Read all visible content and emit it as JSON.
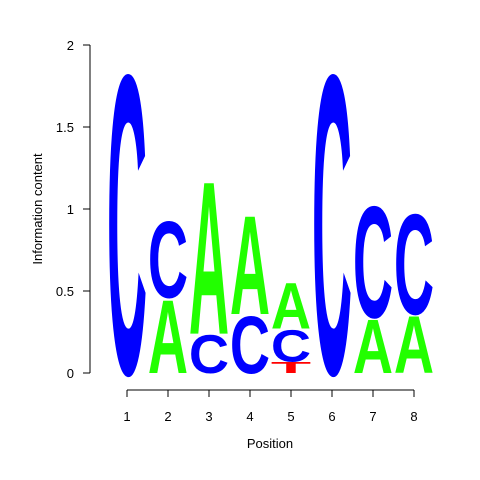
{
  "chart_data": {
    "type": "sequence-logo",
    "title": "",
    "xlabel": "Position",
    "ylabel": "Information content",
    "ylim": [
      0,
      2
    ],
    "y_ticks": [
      "0",
      "0.5",
      "1",
      "1.5",
      "2"
    ],
    "y_tick_values": [
      0,
      0.5,
      1,
      1.5,
      2
    ],
    "x_ticks": [
      "1",
      "2",
      "3",
      "4",
      "5",
      "6",
      "7",
      "8"
    ],
    "colors": {
      "A": "#22ff00",
      "C": "#0000ff",
      "G": "#ffb300",
      "T": "#ff0000"
    },
    "positions": [
      {
        "pos": 1,
        "stack": [
          {
            "letter": "C",
            "height": 1.88
          }
        ]
      },
      {
        "pos": 2,
        "stack": [
          {
            "letter": "A",
            "height": 0.46
          },
          {
            "letter": "C",
            "height": 0.48
          }
        ]
      },
      {
        "pos": 3,
        "stack": [
          {
            "letter": "C",
            "height": 0.24
          },
          {
            "letter": "A",
            "height": 0.96
          }
        ]
      },
      {
        "pos": 4,
        "stack": [
          {
            "letter": "C",
            "height": 0.36
          },
          {
            "letter": "A",
            "height": 0.62
          }
        ]
      },
      {
        "pos": 5,
        "stack": [
          {
            "letter": "T",
            "height": 0.07
          },
          {
            "letter": "C",
            "height": 0.2
          },
          {
            "letter": "A",
            "height": 0.29
          }
        ]
      },
      {
        "pos": 6,
        "stack": [
          {
            "letter": "C",
            "height": 1.88
          }
        ]
      },
      {
        "pos": 7,
        "stack": [
          {
            "letter": "A",
            "height": 0.34
          },
          {
            "letter": "C",
            "height": 0.7
          }
        ]
      },
      {
        "pos": 8,
        "stack": [
          {
            "letter": "A",
            "height": 0.36
          },
          {
            "letter": "C",
            "height": 0.63
          }
        ]
      }
    ]
  }
}
